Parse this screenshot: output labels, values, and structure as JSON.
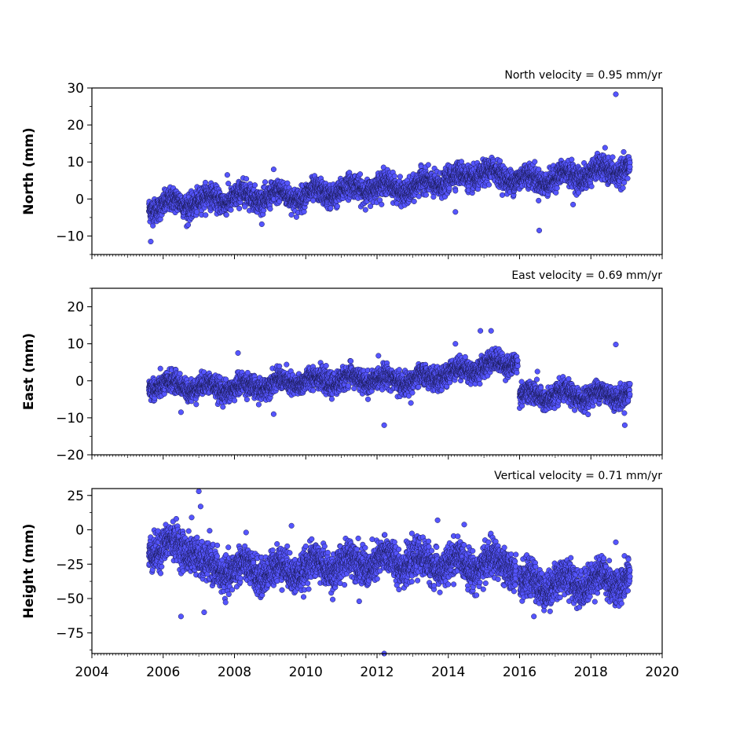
{
  "chart_data": [
    {
      "type": "scatter",
      "title": "North velocity = 0.95 mm/yr",
      "ylabel": "North (mm)",
      "xlim": [
        2004,
        2020
      ],
      "ylim": [
        -15,
        30
      ],
      "yticks": [
        -10,
        0,
        10,
        20,
        30
      ],
      "marker_color": "#5555ff",
      "trend": [
        {
          "x": 2005.6,
          "y": -2
        },
        {
          "x": 2008.0,
          "y": 0.5
        },
        {
          "x": 2010.0,
          "y": 1.0
        },
        {
          "x": 2012.0,
          "y": 3.5
        },
        {
          "x": 2013.0,
          "y": 2.5
        },
        {
          "x": 2013.3,
          "y": 4
        },
        {
          "x": 2015.0,
          "y": 7
        },
        {
          "x": 2016.5,
          "y": 5
        },
        {
          "x": 2019.1,
          "y": 8.5
        }
      ],
      "outliers": [
        {
          "x": 2005.65,
          "y": -11.5
        },
        {
          "x": 2009.1,
          "y": 8
        },
        {
          "x": 2014.2,
          "y": -3.5
        },
        {
          "x": 2016.55,
          "y": -8.5
        },
        {
          "x": 2017.5,
          "y": -1.5
        },
        {
          "x": 2018.7,
          "y": 28.3
        },
        {
          "x": 2018.9,
          "y": 3
        },
        {
          "x": 2007.8,
          "y": 6.5
        },
        {
          "x": 2006.7,
          "y": -7
        }
      ],
      "spread": 2.2
    },
    {
      "type": "scatter",
      "title": "East velocity = 0.69 mm/yr",
      "ylabel": "East (mm)",
      "xlim": [
        2004,
        2020
      ],
      "ylim": [
        -20,
        25
      ],
      "yticks": [
        -20,
        -10,
        0,
        10,
        20
      ],
      "marker_color": "#5555ff",
      "trend": [
        {
          "x": 2005.6,
          "y": -1
        },
        {
          "x": 2008.0,
          "y": -2
        },
        {
          "x": 2010.0,
          "y": 0
        },
        {
          "x": 2012.0,
          "y": 0.5
        },
        {
          "x": 2013.0,
          "y": 0
        },
        {
          "x": 2013.3,
          "y": 0.5
        },
        {
          "x": 2015.0,
          "y": 4
        },
        {
          "x": 2015.95,
          "y": 5.5
        },
        {
          "x": 2016.0,
          "y": -4
        },
        {
          "x": 2017.5,
          "y": -4
        },
        {
          "x": 2019.1,
          "y": -3.5
        }
      ],
      "outliers": [
        {
          "x": 2006.5,
          "y": -8.5
        },
        {
          "x": 2008.1,
          "y": 7.5
        },
        {
          "x": 2009.1,
          "y": -9
        },
        {
          "x": 2012.2,
          "y": -12
        },
        {
          "x": 2012.95,
          "y": -6
        },
        {
          "x": 2014.2,
          "y": 10
        },
        {
          "x": 2014.9,
          "y": 13.5
        },
        {
          "x": 2015.2,
          "y": 13.5
        },
        {
          "x": 2016.5,
          "y": 2.5
        },
        {
          "x": 2018.7,
          "y": 9.8
        },
        {
          "x": 2018.95,
          "y": -12
        }
      ],
      "spread": 2.0
    },
    {
      "type": "scatter",
      "title": "Vertical velocity = 0.71 mm/yr",
      "ylabel": "Height (mm)",
      "xlim": [
        2004,
        2020
      ],
      "ylim": [
        -90,
        30
      ],
      "yticks": [
        -75,
        -50,
        -25,
        0,
        25
      ],
      "marker_color": "#5555ff",
      "trend": [
        {
          "x": 2005.6,
          "y": -12
        },
        {
          "x": 2006.9,
          "y": -13
        },
        {
          "x": 2007.1,
          "y": -28
        },
        {
          "x": 2009.0,
          "y": -30
        },
        {
          "x": 2011.0,
          "y": -25
        },
        {
          "x": 2013.0,
          "y": -22
        },
        {
          "x": 2013.3,
          "y": -25
        },
        {
          "x": 2015.9,
          "y": -25
        },
        {
          "x": 2016.0,
          "y": -40
        },
        {
          "x": 2019.1,
          "y": -36
        }
      ],
      "outliers": [
        {
          "x": 2006.5,
          "y": -63
        },
        {
          "x": 2006.8,
          "y": 9
        },
        {
          "x": 2007.0,
          "y": 28
        },
        {
          "x": 2007.05,
          "y": 17
        },
        {
          "x": 2007.15,
          "y": -60
        },
        {
          "x": 2009.6,
          "y": 3
        },
        {
          "x": 2011.5,
          "y": -52
        },
        {
          "x": 2012.2,
          "y": -90
        },
        {
          "x": 2013.7,
          "y": 7
        },
        {
          "x": 2016.4,
          "y": -63
        },
        {
          "x": 2018.7,
          "y": -9
        }
      ],
      "spread": 9
    }
  ],
  "xticks": [
    "2004",
    "2006",
    "2008",
    "2010",
    "2012",
    "2014",
    "2016",
    "2018",
    "2020"
  ]
}
